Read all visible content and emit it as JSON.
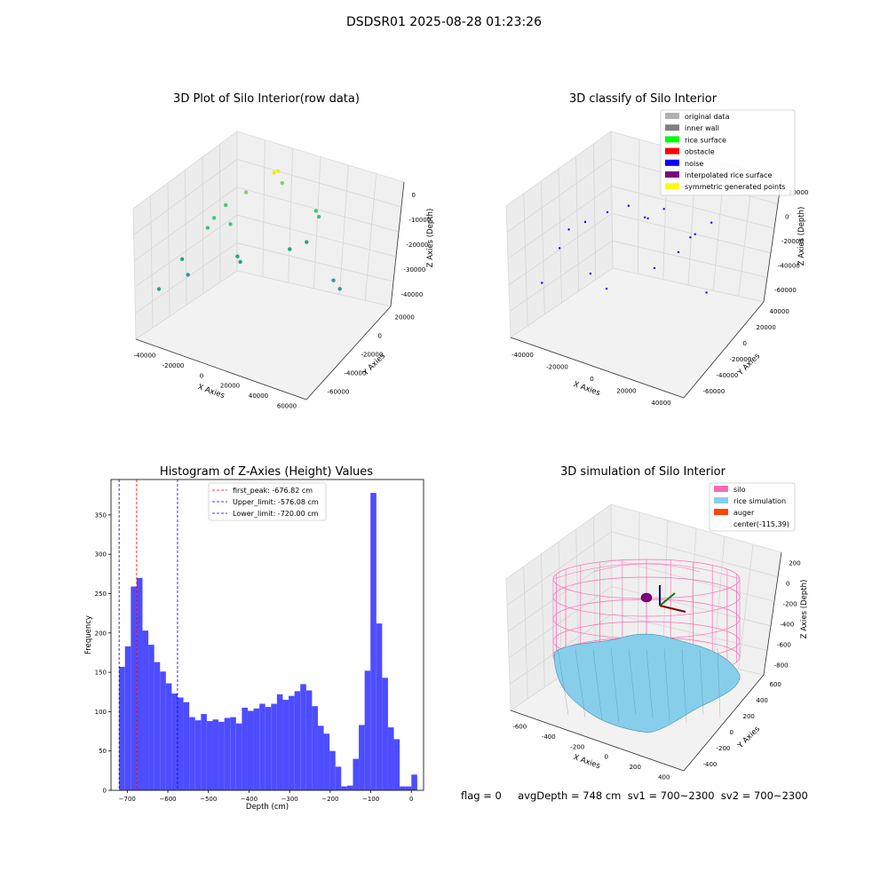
{
  "suptitle": "DSDSR01 2025-08-28 01:23:26",
  "status_line": "flag = 0     avgDepth = 748 cm  sv1 = 700~2300  sv2 = 700~2300",
  "colors": {
    "hist_bar": "#4d4dff",
    "peak_line": "#ff0000",
    "limit_line": "#0000cc",
    "silo": "#ff69b4",
    "rice": "#87ceeb",
    "auger": "#ff4500",
    "pane": "#f2f2f2"
  },
  "chart_data": [
    {
      "type": "scatter",
      "title": "3D Plot of Silo Interior(row data)",
      "xlabel": "X Axies",
      "ylabel": "Y Axies",
      "zlabel": "Z Axies (Depth)",
      "x_ticks": [
        "-40000",
        "-20000",
        "0",
        "20000",
        "40000",
        "60000"
      ],
      "y_ticks": [
        "-60000",
        "-40000",
        "-20000",
        "0",
        "20000"
      ],
      "z_ticks": [
        "0",
        "-10000",
        "-20000",
        "-30000",
        "-40000"
      ],
      "xlim": [
        -55000,
        62000
      ],
      "ylim": [
        -62000,
        30000
      ],
      "zlim": [
        -45000,
        2000
      ],
      "colors_encode": "viridis-like (gray → teal → green → yellow)",
      "points": [
        {
          "x": 5000,
          "y": 15000,
          "z": -2000
        },
        {
          "x": 3000,
          "y": 14000,
          "z": -2500
        },
        {
          "x": 8000,
          "y": 13000,
          "z": -6000
        },
        {
          "x": -15000,
          "y": 20000,
          "z": -10000
        },
        {
          "x": -25000,
          "y": 15000,
          "z": -14000
        },
        {
          "x": -30000,
          "y": 10000,
          "z": -18000
        },
        {
          "x": -32000,
          "y": 5000,
          "z": -21000
        },
        {
          "x": -20000,
          "y": 8000,
          "z": -20000
        },
        {
          "x": 30000,
          "y": 5000,
          "z": -15000
        },
        {
          "x": 32000,
          "y": 4000,
          "z": -17000
        },
        {
          "x": 28000,
          "y": -5000,
          "z": -25000
        },
        {
          "x": 20000,
          "y": -10000,
          "z": -27000
        },
        {
          "x": -10000,
          "y": -5000,
          "z": -32000
        },
        {
          "x": -35000,
          "y": -20000,
          "z": -35000
        },
        {
          "x": 45000,
          "y": -10000,
          "z": -38000
        },
        {
          "x": 52000,
          "y": -20000,
          "z": -40000
        },
        {
          "x": -40000,
          "y": -15000,
          "z": -30000
        },
        {
          "x": -5000,
          "y": -25000,
          "z": -28000
        },
        {
          "x": -45000,
          "y": -40000,
          "z": -38000
        }
      ]
    },
    {
      "type": "scatter",
      "title": "3D classify of Silo Interior",
      "xlabel": "X Axies",
      "ylabel": "Y Axies",
      "zlabel": "Z Axies (Depth)",
      "x_ticks": [
        "-40000",
        "-20000",
        "0",
        "20000",
        "40000"
      ],
      "y_ticks": [
        "-60000",
        "-40000",
        "-20000",
        "0",
        "20000",
        "40000"
      ],
      "z_ticks": [
        "20000",
        "0",
        "-20000",
        "-40000",
        "-60000"
      ],
      "xlim": [
        -50000,
        52000
      ],
      "ylim": [
        -65000,
        45000
      ],
      "zlim": [
        -65000,
        25000
      ],
      "legend": [
        {
          "label": "original data",
          "color": "#b0b0b0"
        },
        {
          "label": "inner wall",
          "color": "#808080"
        },
        {
          "label": "rice surface",
          "color": "#00ff00"
        },
        {
          "label": "obstacle",
          "color": "#ff0000"
        },
        {
          "label": "noise",
          "color": "#0000ff"
        },
        {
          "label": "interpolated rice surface",
          "color": "#800080"
        },
        {
          "label": "symmetric generated points",
          "color": "#ffff00"
        }
      ],
      "points": [
        {
          "x": 2000,
          "y": 20000,
          "z": -5000
        },
        {
          "x": 4000,
          "y": 19000,
          "z": -5500
        },
        {
          "x": -20000,
          "y": 25000,
          "z": -2000
        },
        {
          "x": -30000,
          "y": 18000,
          "z": -8000
        },
        {
          "x": -38000,
          "y": 15000,
          "z": -13000
        },
        {
          "x": -10000,
          "y": 30000,
          "z": 2000
        },
        {
          "x": 10000,
          "y": 28000,
          "z": 0
        },
        {
          "x": 30000,
          "y": 10000,
          "z": -18000
        },
        {
          "x": 32000,
          "y": 12000,
          "z": -16000
        },
        {
          "x": 25000,
          "y": 5000,
          "z": -28000
        },
        {
          "x": 15000,
          "y": -5000,
          "z": -38000
        },
        {
          "x": -20000,
          "y": -5000,
          "z": -42000
        },
        {
          "x": -45000,
          "y": -10000,
          "z": -48000
        },
        {
          "x": -5000,
          "y": -25000,
          "z": -50000
        },
        {
          "x": 45000,
          "y": -10000,
          "z": -55000
        },
        {
          "x": 40000,
          "y": 15000,
          "z": -8000
        },
        {
          "x": -40000,
          "y": 5000,
          "z": -25000
        }
      ]
    },
    {
      "type": "bar",
      "title": "Histogram of Z-Axies (Height) Values",
      "xlabel": "Depth (cm)",
      "ylabel": "Frequency",
      "xlim": [
        -740,
        30
      ],
      "ylim": [
        0,
        395
      ],
      "x_ticks": [
        -700,
        -600,
        -500,
        -400,
        -300,
        -200,
        -100,
        0
      ],
      "y_ticks": [
        0,
        50,
        100,
        150,
        200,
        250,
        300,
        350
      ],
      "bin_start": -720,
      "bin_width": 14.4,
      "values": [
        157,
        183,
        259,
        270,
        203,
        185,
        163,
        151,
        136,
        123,
        118,
        112,
        93,
        89,
        97,
        88,
        90,
        87,
        92,
        93,
        85,
        105,
        101,
        104,
        110,
        106,
        110,
        122,
        115,
        120,
        126,
        135,
        127,
        107,
        82,
        72,
        50,
        30,
        5,
        6,
        40,
        83,
        152,
        378,
        212,
        143,
        80,
        65,
        5,
        5,
        20
      ],
      "vlines": [
        {
          "label": "first_peak: -676.82 cm",
          "x": -676.82,
          "color": "#ff0000"
        },
        {
          "label": "Upper_limit: -576.08 cm",
          "x": -576.08,
          "color": "#0000cc"
        },
        {
          "label": "Lower_limit: -720.00 cm",
          "x": -720.0,
          "color": "#0000cc"
        }
      ]
    },
    {
      "type": "area",
      "title": "3D simulation of Silo Interior",
      "xlabel": "X Axies",
      "ylabel": "Y Axies",
      "zlabel": "Z Axies (Depth)",
      "x_ticks": [
        "-600",
        "-400",
        "-200",
        "0",
        "200",
        "400"
      ],
      "y_ticks": [
        "-400",
        "-200",
        "0",
        "200",
        "400",
        "600"
      ],
      "z_ticks": [
        "200",
        "0",
        "-200",
        "-400",
        "-600",
        "-800"
      ],
      "xlim": [
        -700,
        450
      ],
      "ylim": [
        -450,
        650
      ],
      "zlim": [
        -900,
        300
      ],
      "legend": [
        {
          "label": "silo",
          "color": "#ff69b4"
        },
        {
          "label": "rice simulation",
          "color": "#87ceeb"
        },
        {
          "label": "auger",
          "color": "#ff4500"
        },
        {
          "label": "center(-115,39)",
          "color": ""
        }
      ]
    }
  ]
}
